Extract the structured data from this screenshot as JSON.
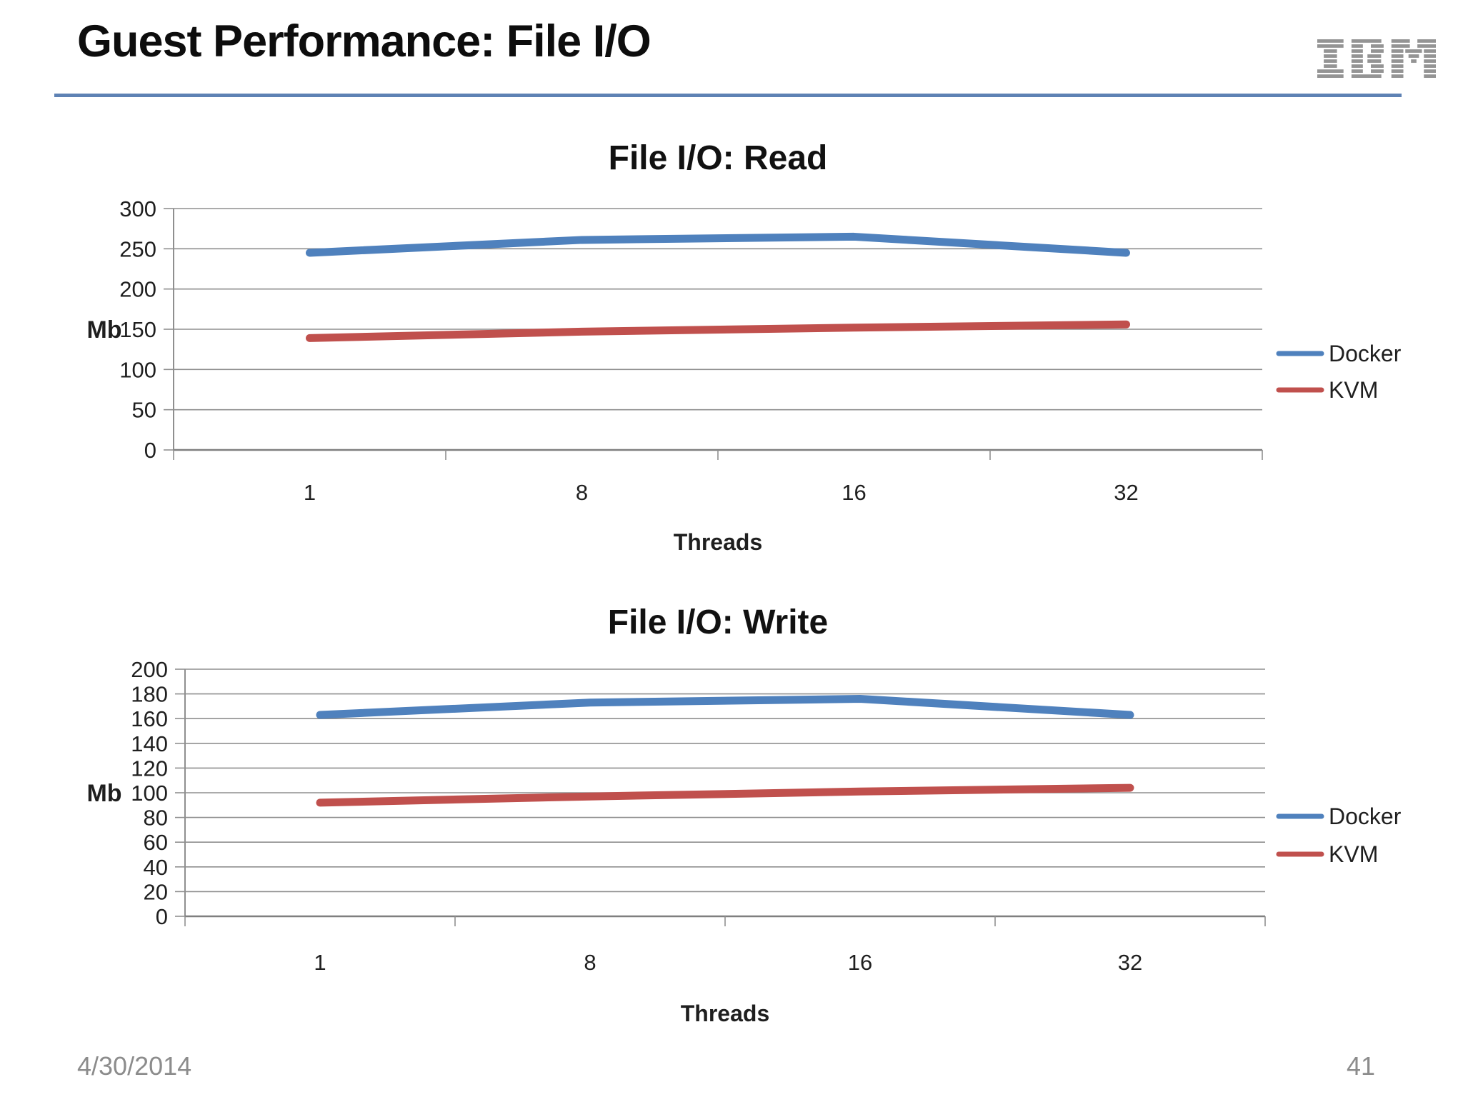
{
  "slide": {
    "title": "Guest Performance: File I/O",
    "logo_text": "IBM",
    "footer_date": "4/30/2014",
    "page_number": "41"
  },
  "colors": {
    "docker": "#4f81bd",
    "kvm": "#c0504d",
    "header_rule": "#5e82b4",
    "gridline": "#8f8f8f",
    "axis": "#7f7f7f",
    "footer_text": "#8c8c8c",
    "logo_gray": "#949494"
  },
  "chart_data": [
    {
      "type": "line",
      "title": "File I/O: Read",
      "categories": [
        "1",
        "8",
        "16",
        "32"
      ],
      "xlabel": "Threads",
      "ylabel": "Mb",
      "ylim": [
        0,
        300
      ],
      "ytick_step": 50,
      "grid": true,
      "legend_position": "right",
      "series": [
        {
          "name": "Docker",
          "color_key": "docker",
          "values": [
            245,
            261,
            265,
            245
          ]
        },
        {
          "name": "KVM",
          "color_key": "kvm",
          "values": [
            139,
            147,
            152,
            156
          ]
        }
      ]
    },
    {
      "type": "line",
      "title": "File I/O: Write",
      "categories": [
        "1",
        "8",
        "16",
        "32"
      ],
      "xlabel": "Threads",
      "ylabel": "Mb",
      "ylim": [
        0,
        200
      ],
      "ytick_step": 20,
      "grid": true,
      "legend_position": "right",
      "series": [
        {
          "name": "Docker",
          "color_key": "docker",
          "values": [
            163,
            173,
            176,
            163
          ]
        },
        {
          "name": "KVM",
          "color_key": "kvm",
          "values": [
            92,
            97,
            101,
            104
          ]
        }
      ]
    }
  ]
}
